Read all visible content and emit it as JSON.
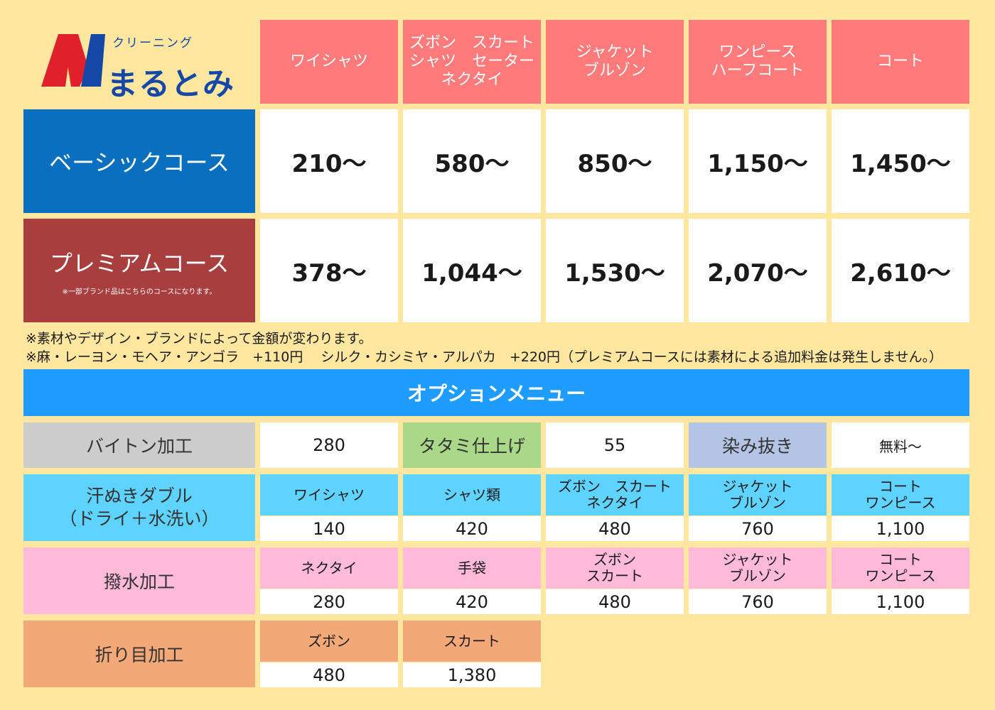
{
  "logo": {
    "sub": "クリーニング",
    "name": "まるとみ",
    "colors": {
      "red": "#e0202a",
      "blue": "#1547a6"
    }
  },
  "categories": [
    "ワイシャツ",
    "ズボン　スカート\nシャツ　セーター\nネクタイ",
    "ジャケット\nブルゾン",
    "ワンピース\nハーフコート",
    "コート"
  ],
  "courses": {
    "basic": {
      "name": "ベーシックコース",
      "prices": [
        "210～",
        "580～",
        "850～",
        "1,150～",
        "1,450～"
      ]
    },
    "premium": {
      "name": "プレミアムコース",
      "note": "※一部ブランド品はこちらのコースになります。",
      "prices": [
        "378～",
        "1,044～",
        "1,530～",
        "2,070～",
        "2,610～"
      ]
    }
  },
  "notes": [
    "※素材やデザイン・ブランドによって金額が変わります。",
    "※麻・レーヨン・モヘア・アンゴラ　+110円　 シルク・カシミヤ・アルパカ　+220円（プレミアムコースには素材による追加料金は発生しません。）"
  ],
  "options": {
    "title": "オプションメニュー",
    "simple": [
      {
        "label": "バイトン加工",
        "value": "280",
        "color": "#cccccc"
      },
      {
        "label": "タタミ仕上げ",
        "value": "55",
        "color": "#a8d888"
      },
      {
        "label": "染み抜き",
        "value": "無料～",
        "color": "#b4c4e4"
      }
    ],
    "sweat": {
      "label": "汗ぬきダブル\n（ドライ＋水洗い）",
      "color": "#5fd3ff",
      "items": [
        {
          "name": "ワイシャツ",
          "price": "140"
        },
        {
          "name": "シャツ類",
          "price": "420"
        },
        {
          "name": "ズボン　スカート\nネクタイ",
          "price": "480"
        },
        {
          "name": "ジャケット\nブルゾン",
          "price": "760"
        },
        {
          "name": "コート\nワンピース",
          "price": "1,100"
        }
      ]
    },
    "water": {
      "label": "撥水加工",
      "color": "#ffb9d9",
      "items": [
        {
          "name": "ネクタイ",
          "price": "280"
        },
        {
          "name": "手袋",
          "price": "420"
        },
        {
          "name": "ズボン\nスカート",
          "price": "480"
        },
        {
          "name": "ジャケット\nブルゾン",
          "price": "760"
        },
        {
          "name": "コート\nワンピース",
          "price": "1,100"
        }
      ]
    },
    "crease": {
      "label": "折り目加工",
      "color": "#f3a877",
      "items": [
        {
          "name": "ズボン",
          "price": "480"
        },
        {
          "name": "スカート",
          "price": "1,380"
        }
      ]
    }
  }
}
